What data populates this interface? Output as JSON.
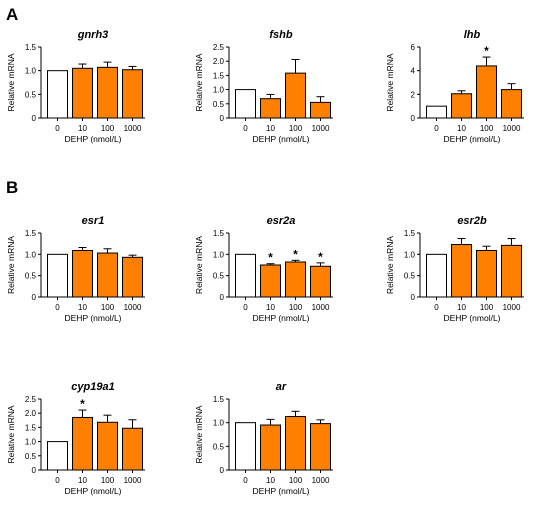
{
  "panels": [
    {
      "label": "A",
      "row": 0
    },
    {
      "label": "B",
      "row": 1
    }
  ],
  "chart_data": [
    {
      "id": "gnrh3",
      "type": "bar",
      "title": "gnrh3",
      "xlabel": "DEHP (nmol/L)",
      "ylabel": "Relative mRNA",
      "categories": [
        "0",
        "10",
        "100",
        "1000"
      ],
      "values": [
        1.0,
        1.05,
        1.07,
        1.02
      ],
      "errors": [
        0,
        0.09,
        0.11,
        0.07
      ],
      "significant": [
        false,
        false,
        false,
        false
      ],
      "ylim": [
        0,
        1.5
      ],
      "yticks": [
        0,
        0.5,
        1.0,
        1.5
      ],
      "ytick_labels": [
        "0",
        "0.5",
        "1.0",
        "1.5"
      ],
      "bar_colors": [
        "#ffffff",
        "#ff7f00",
        "#ff7f00",
        "#ff7f00"
      ],
      "grid": false
    },
    {
      "id": "fshb",
      "type": "bar",
      "title": "fshb",
      "xlabel": "DEHP (nmol/L)",
      "ylabel": "Relative mRNA",
      "categories": [
        "0",
        "10",
        "100",
        "1000"
      ],
      "values": [
        1.0,
        0.68,
        1.58,
        0.55
      ],
      "errors": [
        0,
        0.15,
        0.48,
        0.2
      ],
      "significant": [
        false,
        false,
        false,
        false
      ],
      "ylim": [
        0,
        2.5
      ],
      "yticks": [
        0,
        0.5,
        1.0,
        1.5,
        2.0,
        2.5
      ],
      "ytick_labels": [
        "0",
        "0.5",
        "1.0",
        "1.5",
        "2.0",
        "2.5"
      ],
      "bar_colors": [
        "#ffffff",
        "#ff7f00",
        "#ff7f00",
        "#ff7f00"
      ],
      "grid": false
    },
    {
      "id": "lhb",
      "type": "bar",
      "title": "lhb",
      "xlabel": "DEHP (nmol/L)",
      "ylabel": "Relative mRNA",
      "categories": [
        "0",
        "10",
        "100",
        "1000"
      ],
      "values": [
        1.0,
        2.05,
        4.4,
        2.4
      ],
      "errors": [
        0,
        0.25,
        0.75,
        0.5
      ],
      "significant": [
        false,
        false,
        true,
        false
      ],
      "ylim": [
        0,
        6
      ],
      "yticks": [
        0,
        2,
        4,
        6
      ],
      "ytick_labels": [
        "0",
        "2",
        "4",
        "6"
      ],
      "bar_colors": [
        "#ffffff",
        "#ff7f00",
        "#ff7f00",
        "#ff7f00"
      ],
      "grid": false
    },
    {
      "id": "esr1",
      "type": "bar",
      "title": "esr1",
      "xlabel": "DEHP (nmol/L)",
      "ylabel": "Relative mRNA",
      "categories": [
        "0",
        "10",
        "100",
        "1000"
      ],
      "values": [
        1.0,
        1.09,
        1.03,
        0.93
      ],
      "errors": [
        0,
        0.07,
        0.1,
        0.05
      ],
      "significant": [
        false,
        false,
        false,
        false
      ],
      "ylim": [
        0,
        1.5
      ],
      "yticks": [
        0,
        0.5,
        1.0,
        1.5
      ],
      "ytick_labels": [
        "0",
        "0.5",
        "1.0",
        "1.5"
      ],
      "bar_colors": [
        "#ffffff",
        "#ff7f00",
        "#ff7f00",
        "#ff7f00"
      ],
      "grid": false
    },
    {
      "id": "esr2a",
      "type": "bar",
      "title": "esr2a",
      "xlabel": "DEHP (nmol/L)",
      "ylabel": "Relative mRNA",
      "categories": [
        "0",
        "10",
        "100",
        "1000"
      ],
      "values": [
        1.0,
        0.75,
        0.82,
        0.72
      ],
      "errors": [
        0,
        0.03,
        0.04,
        0.08
      ],
      "significant": [
        false,
        true,
        true,
        true
      ],
      "ylim": [
        0,
        1.5
      ],
      "yticks": [
        0,
        0.5,
        1.0,
        1.5
      ],
      "ytick_labels": [
        "0",
        "0.5",
        "1.0",
        "1.5"
      ],
      "bar_colors": [
        "#ffffff",
        "#ff7f00",
        "#ff7f00",
        "#ff7f00"
      ],
      "grid": false
    },
    {
      "id": "esr2b",
      "type": "bar",
      "title": "esr2b",
      "xlabel": "DEHP (nmol/L)",
      "ylabel": "Relative mRNA",
      "categories": [
        "0",
        "10",
        "100",
        "1000"
      ],
      "values": [
        1.0,
        1.23,
        1.09,
        1.21
      ],
      "errors": [
        0,
        0.14,
        0.1,
        0.16
      ],
      "significant": [
        false,
        false,
        false,
        false
      ],
      "ylim": [
        0,
        1.5
      ],
      "yticks": [
        0,
        0.5,
        1.0,
        1.5
      ],
      "ytick_labels": [
        "0",
        "0.5",
        "1.0",
        "1.5"
      ],
      "bar_colors": [
        "#ffffff",
        "#ff7f00",
        "#ff7f00",
        "#ff7f00"
      ],
      "grid": false
    },
    {
      "id": "cyp19a1",
      "type": "bar",
      "title": "cyp19a1",
      "xlabel": "DEHP (nmol/L)",
      "ylabel": "Relative mRNA",
      "categories": [
        "0",
        "10",
        "100",
        "1000"
      ],
      "values": [
        1.0,
        1.85,
        1.68,
        1.47
      ],
      "errors": [
        0,
        0.26,
        0.25,
        0.3
      ],
      "significant": [
        false,
        true,
        false,
        false
      ],
      "ylim": [
        0,
        2.5
      ],
      "yticks": [
        0,
        0.5,
        1.0,
        1.5,
        2.0,
        2.5
      ],
      "ytick_labels": [
        "0",
        "0.5",
        "1.0",
        "1.5",
        "2.0",
        "2.5"
      ],
      "bar_colors": [
        "#ffffff",
        "#ff7f00",
        "#ff7f00",
        "#ff7f00"
      ],
      "grid": false
    },
    {
      "id": "ar",
      "type": "bar",
      "title": "ar",
      "xlabel": "DEHP (nmol/L)",
      "ylabel": "Relative mRNA",
      "categories": [
        "0",
        "10",
        "100",
        "1000"
      ],
      "values": [
        1.0,
        0.95,
        1.13,
        0.98
      ],
      "errors": [
        0,
        0.12,
        0.11,
        0.08
      ],
      "significant": [
        false,
        false,
        false,
        false
      ],
      "ylim": [
        0,
        1.5
      ],
      "yticks": [
        0,
        0.5,
        1.0,
        1.5
      ],
      "ytick_labels": [
        "0",
        "0.5",
        "1.0",
        "1.5"
      ],
      "bar_colors": [
        "#ffffff",
        "#ff7f00",
        "#ff7f00",
        "#ff7f00"
      ],
      "grid": false
    }
  ]
}
